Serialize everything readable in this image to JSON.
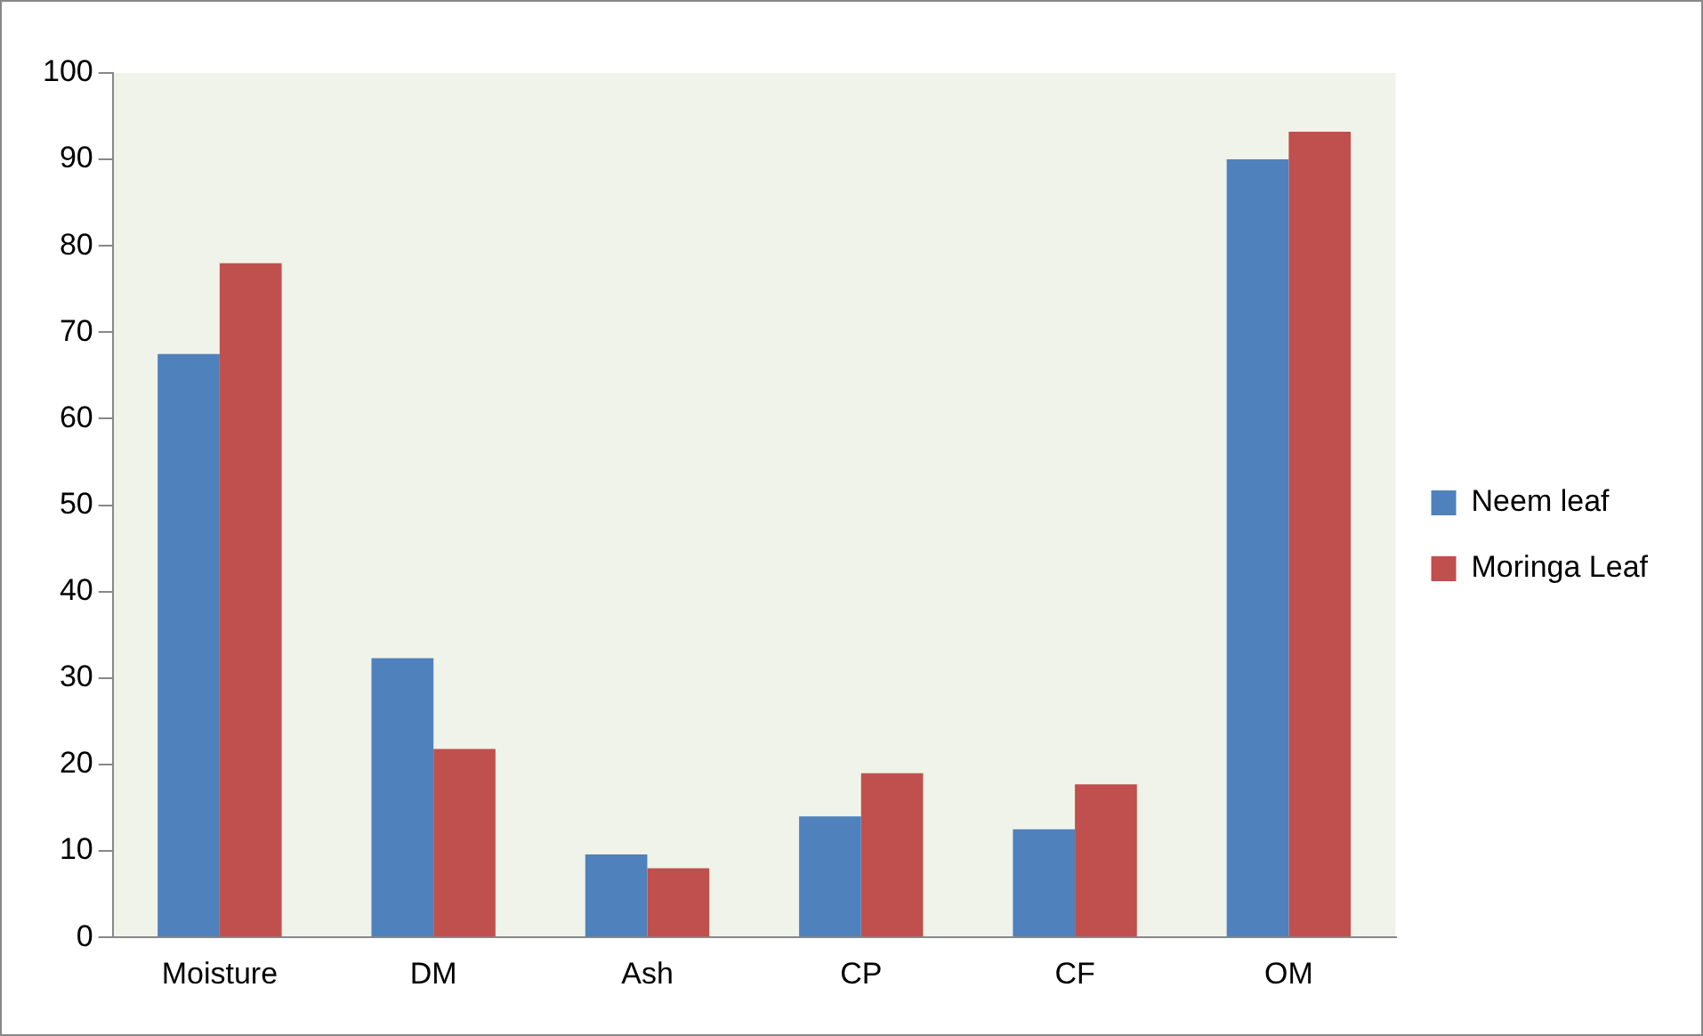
{
  "chart_data": {
    "type": "bar",
    "categories": [
      "Moisture",
      "DM",
      "Ash",
      "CP",
      "CF",
      "OM"
    ],
    "series": [
      {
        "name": "Neem leaf",
        "color": "#4f81bd",
        "values": [
          67.5,
          32.3,
          9.6,
          14,
          12.5,
          90
        ]
      },
      {
        "name": "Moringa Leaf",
        "color": "#c0504d",
        "values": [
          78,
          21.8,
          8,
          19,
          17.7,
          93.2
        ]
      }
    ],
    "ylim": [
      0,
      100
    ],
    "yticks": [
      0,
      10,
      20,
      30,
      40,
      50,
      60,
      70,
      80,
      90,
      100
    ],
    "grid": false,
    "legend": "right"
  }
}
